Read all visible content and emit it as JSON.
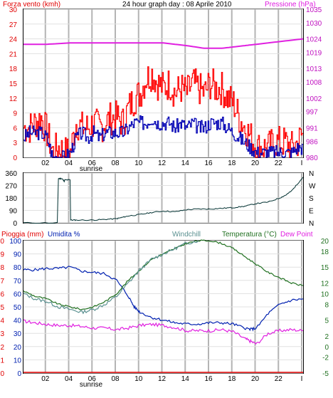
{
  "header": {
    "left_label": "Forza vento (kmh)",
    "title": "24 hour graph day : 08 Aprile 2010",
    "right_label": "Pressione (hPa)"
  },
  "lower_header": {
    "rain_label": "Pioggia (mm)",
    "humidity_label": "Umidita %",
    "windchill_label": "Windchill",
    "temperature_label": "Temperatura (°C)",
    "dewpoint_label": "Dew Point"
  },
  "colors": {
    "wind_gust": "#ff0000",
    "wind_avg": "#0000b4",
    "pressure": "#e020e0",
    "direction": "#003030",
    "temperature": "#207020",
    "windchill": "#5a9090",
    "humidity": "#0020b0",
    "dewpoint": "#e020e0",
    "rain": "#e00000",
    "grid": "#b4b4b4"
  },
  "chart_data": [
    {
      "type": "line",
      "name": "wind-pressure",
      "x_ticks": [
        "02",
        "04",
        "06",
        "08",
        "10",
        "12",
        "14",
        "16",
        "18",
        "20",
        "22",
        "I"
      ],
      "sunrise_label": "sunrise",
      "sunrise_hour": 5.8,
      "ylim": [
        0,
        30
      ],
      "yticks": [
        0,
        3,
        6,
        9,
        12,
        15,
        18,
        21,
        24,
        27,
        30
      ],
      "y2lim": [
        980,
        1035
      ],
      "y2ticks": [
        980,
        986,
        991,
        997,
        1002,
        1008,
        1013,
        1019,
        1024,
        1030,
        1035
      ],
      "series": [
        {
          "key": "gust",
          "axis": "left",
          "x": [
            0,
            0.5,
            1,
            1.5,
            2,
            2.5,
            3,
            3.5,
            4,
            4.5,
            5,
            5.5,
            6,
            6.5,
            7,
            7.5,
            8,
            8.5,
            9,
            9.5,
            10,
            10.5,
            11,
            11.5,
            12,
            12.5,
            13,
            13.5,
            14,
            14.5,
            15,
            15.5,
            16,
            16.5,
            17,
            17.5,
            18,
            18.5,
            19,
            19.5,
            20,
            20.5,
            21,
            21.5,
            22,
            22.5,
            23,
            23.5,
            24
          ],
          "y": [
            6,
            6,
            7,
            8,
            5,
            1,
            2,
            1,
            1,
            7,
            6,
            6,
            7,
            6,
            7,
            8,
            8,
            7,
            10,
            12,
            13,
            16,
            17,
            15,
            14,
            15,
            13,
            14,
            13,
            15,
            14,
            13,
            15,
            14,
            14,
            12,
            11,
            8,
            6,
            4,
            2,
            2,
            2,
            3,
            3,
            3,
            2,
            3,
            5
          ]
        },
        {
          "key": "avg",
          "axis": "left",
          "x": [
            0,
            0.5,
            1,
            1.5,
            2,
            2.5,
            3,
            3.5,
            4,
            4.5,
            5,
            5.5,
            6,
            6.5,
            7,
            7.5,
            8,
            8.5,
            9,
            9.5,
            10,
            10.5,
            11,
            11.5,
            12,
            12.5,
            13,
            13.5,
            14,
            14.5,
            15,
            15.5,
            16,
            16.5,
            17,
            17.5,
            18,
            18.5,
            19,
            19.5,
            20,
            20.5,
            21,
            21.5,
            22,
            22.5,
            23,
            23.5,
            24
          ],
          "y": [
            4,
            5,
            5,
            5,
            4,
            0,
            0,
            0,
            1,
            4,
            5,
            4,
            5,
            4,
            5,
            5,
            5,
            5,
            6,
            7,
            7,
            7,
            8,
            7,
            7,
            7,
            6,
            7,
            6,
            7,
            6,
            6,
            7,
            7,
            7,
            6,
            5,
            4,
            3,
            2,
            1,
            1,
            1,
            1,
            1,
            1,
            1,
            2,
            2
          ]
        },
        {
          "key": "pressure",
          "axis": "right",
          "x": [
            0,
            2,
            4,
            6,
            8,
            10,
            12,
            14,
            15.5,
            17,
            18,
            19,
            20,
            22,
            24
          ],
          "y": [
            1022,
            1022,
            1022.5,
            1022.5,
            1022.5,
            1022.5,
            1022.5,
            1021.5,
            1020.5,
            1020.5,
            1021,
            1021.5,
            1022,
            1023,
            1024
          ]
        }
      ]
    },
    {
      "type": "line",
      "name": "wind-direction",
      "ylim": [
        0,
        360
      ],
      "yticks": [
        0,
        90,
        180,
        270,
        360
      ],
      "y2labels": [
        "N",
        "W",
        "S",
        "E",
        "N"
      ],
      "series": [
        {
          "key": "direction",
          "x": [
            0,
            2.9,
            3,
            3.3,
            3.5,
            3.55,
            4,
            4.05,
            4.5,
            6,
            7,
            8,
            8.5,
            9,
            10,
            11,
            12,
            13,
            14,
            15,
            16,
            17,
            18,
            19,
            20,
            21,
            22,
            22.5,
            23,
            23.5,
            24
          ],
          "y": [
            0,
            0,
            320,
            320,
            300,
            310,
            310,
            20,
            20,
            20,
            25,
            30,
            40,
            50,
            60,
            75,
            85,
            80,
            95,
            100,
            100,
            105,
            110,
            120,
            140,
            150,
            180,
            200,
            230,
            280,
            330
          ]
        }
      ]
    },
    {
      "type": "line",
      "name": "rain-humidity-temperature",
      "ylim_rain": [
        0,
        10
      ],
      "yticks_rain": [
        0,
        1,
        2,
        3,
        4,
        5,
        6,
        7,
        8,
        9,
        10
      ],
      "ylim_humidity": [
        0,
        100
      ],
      "yticks_humidity": [
        0,
        10,
        20,
        30,
        40,
        50,
        60,
        70,
        80,
        90,
        100
      ],
      "ylim_temperature": [
        -5,
        20
      ],
      "yticks_temperature": [
        -5,
        -2,
        0,
        2,
        5,
        8,
        10,
        12,
        15,
        18,
        20
      ],
      "series": [
        {
          "key": "humidity",
          "axis": "humidity",
          "x": [
            0,
            1,
            2,
            3,
            4,
            5,
            6,
            7,
            8,
            9,
            9.5,
            10,
            11,
            12,
            13,
            14,
            15,
            16,
            17,
            18,
            19,
            19.5,
            20,
            21,
            22,
            23,
            24
          ],
          "y": [
            78,
            78,
            79,
            79,
            80,
            77,
            76,
            75,
            70,
            58,
            50,
            46,
            42,
            40,
            38,
            37,
            37,
            38,
            38,
            37,
            34,
            33,
            34,
            45,
            52,
            55,
            56
          ]
        },
        {
          "key": "temperature",
          "axis": "temperature",
          "x": [
            0,
            1,
            2,
            3,
            4,
            5,
            6,
            7,
            8,
            9,
            10,
            11,
            12,
            13,
            14,
            15,
            16,
            17,
            18,
            19,
            20,
            21,
            22,
            23,
            24
          ],
          "y": [
            10.5,
            9.5,
            9,
            8,
            7.5,
            7,
            7.5,
            8.5,
            10,
            12.5,
            14.5,
            16.5,
            17.5,
            18.5,
            19.5,
            20,
            20,
            19.5,
            18.5,
            17,
            15.5,
            14,
            13,
            12,
            11.5
          ]
        },
        {
          "key": "windchill",
          "axis": "temperature",
          "x": [
            0,
            1,
            2,
            3,
            4,
            5,
            6,
            7,
            8,
            9,
            10,
            11,
            12,
            13,
            14,
            15
          ],
          "y": [
            10,
            9,
            8.5,
            7.5,
            7,
            6.5,
            7,
            8,
            9.5,
            12,
            14.5,
            16.5,
            17.5,
            18.5,
            19.5,
            20
          ]
        },
        {
          "key": "dewpoint",
          "axis": "temperature",
          "x": [
            0,
            1,
            2,
            3,
            4,
            5,
            6,
            7,
            8,
            9,
            10,
            11,
            12,
            13,
            14,
            15,
            16,
            17,
            18,
            19,
            19.5,
            20,
            21,
            22,
            23,
            24
          ],
          "y": [
            4.8,
            4.5,
            4.2,
            4,
            4,
            3.8,
            3.5,
            3.5,
            3.2,
            3.5,
            4,
            4.2,
            4,
            3.6,
            3,
            3,
            3,
            3.2,
            2.8,
            1.5,
            1,
            0.5,
            2.5,
            3,
            3.2,
            3
          ]
        },
        {
          "key": "rain",
          "axis": "rain",
          "x": [
            0,
            24
          ],
          "y": [
            0,
            0
          ]
        }
      ]
    }
  ]
}
